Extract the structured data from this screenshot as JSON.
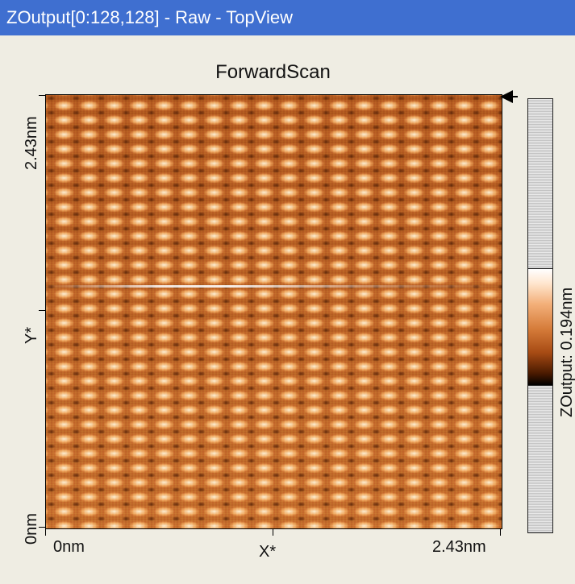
{
  "window": {
    "title": "ZOutput[0:128,128] - Raw - TopView"
  },
  "plot": {
    "title": "ForwardScan",
    "x_axis_label": "X*",
    "y_axis_label": "Y*",
    "x_min_label": "0nm",
    "x_max_label": "2.43nm",
    "y_min_label": "0nm",
    "y_max_label": "2.43nm"
  },
  "colorbar": {
    "label": "ZOutput: 0.194nm"
  },
  "colors": {
    "titlebar": "#3f6fd0",
    "scan_mid": "#c9732f",
    "scan_bright": "#fff6dc",
    "scan_dark": "#4a1a00"
  }
}
